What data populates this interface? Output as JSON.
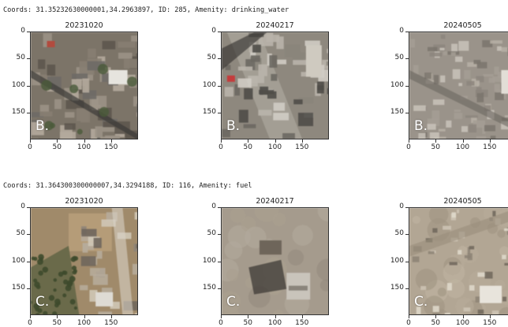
{
  "rows": [
    {
      "header": "Coords: 31.35232630000001,34.2963897, ID: 285, Amenity: drinking_water",
      "label": "B.",
      "panels": [
        {
          "title": "20231020",
          "scene": "dense-urban-intact"
        },
        {
          "title": "20240217",
          "scene": "urban-damaged"
        },
        {
          "title": "20240505",
          "scene": "urban-rubble"
        }
      ]
    },
    {
      "header": "Coords: 31.364300300000007,34.3294188, ID: 116, Amenity: fuel",
      "label": "C.",
      "panels": [
        {
          "title": "20231020",
          "scene": "fields-and-buildings"
        },
        {
          "title": "20240217",
          "scene": "cleared-ground"
        },
        {
          "title": "20240505",
          "scene": "open-rubble"
        }
      ]
    }
  ],
  "axes": {
    "yticks": [
      "0",
      "50",
      "100",
      "150"
    ],
    "xticks": [
      "0",
      "50",
      "100",
      "150"
    ]
  }
}
